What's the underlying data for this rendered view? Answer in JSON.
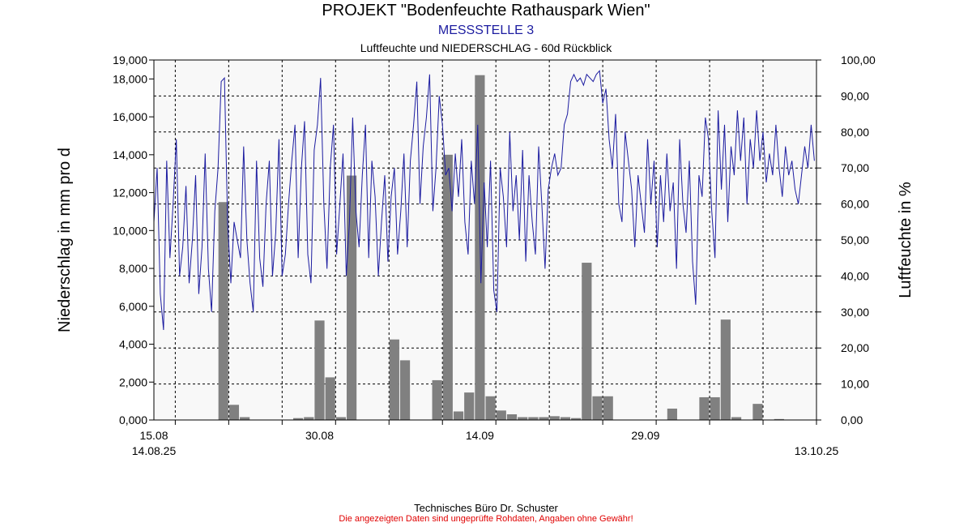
{
  "header": {
    "title": "PROJEKT \"Bodenfeuchte Rathauspark Wien\"",
    "subtitle": "MESSSTELLE 3",
    "subtitle2": "Luftfeuchte und NIEDERSCHLAG - 60d Rückblick"
  },
  "footer": {
    "company": "Technisches Büro Dr. Schuster",
    "disclaimer": "Die angezeigten Daten sind ungeprüfte Rohdaten, Angaben ohne Gewähr!"
  },
  "colors": {
    "plot_background": "#f8f8f8",
    "bars": "#808080",
    "humidity_line": "#1c1ca0",
    "grid": "#000000",
    "subtitle": "#1c1ca0",
    "disclaimer": "#e00000"
  },
  "chart_data": {
    "type": "bar+line",
    "ylabel_left": "Niederschlag in mm pro d",
    "ylabel_right": "Luftfeuchte in %",
    "ylim_left": [
      0,
      19
    ],
    "ylim_right": [
      0,
      100
    ],
    "yticks_left": [
      "0,000",
      "2,000",
      "4,000",
      "6,000",
      "8,000",
      "10,000",
      "12,000",
      "14,000",
      "16,000",
      "18,000",
      "19,000"
    ],
    "yticks_right": [
      "0,00",
      "10,00",
      "20,00",
      "30,00",
      "40,00",
      "50,00",
      "60,00",
      "70,00",
      "80,00",
      "90,00",
      "100,00"
    ],
    "x_days_total": 62,
    "x_start": "2025-08-14",
    "xticks": [
      {
        "label": "15.08",
        "day": 0
      },
      {
        "label": "30.08",
        "day": 15.5
      },
      {
        "label": "14.09",
        "day": 30.5
      },
      {
        "label": "29.09",
        "day": 46
      }
    ],
    "x_start_label": "14.08.25",
    "x_end_label": "13.10.25",
    "grid": true,
    "precipitation_series": {
      "name": "NIEDERSCHLAG",
      "days": [
        6,
        7,
        8,
        13,
        14,
        15,
        16,
        17,
        18,
        19,
        22,
        23,
        26,
        27,
        28,
        29,
        30,
        31,
        32,
        33,
        34,
        35,
        36,
        37,
        38,
        39,
        40,
        41,
        42,
        43,
        48,
        51,
        52,
        53,
        54,
        56,
        58
      ],
      "values": [
        11.5,
        0.8,
        0.15,
        0.1,
        0.15,
        5.25,
        2.25,
        0.15,
        12.9,
        0.0,
        4.25,
        3.15,
        2.1,
        14.0,
        0.45,
        1.45,
        18.2,
        1.25,
        0.5,
        0.3,
        0.15,
        0.15,
        0.15,
        0.2,
        0.15,
        0.1,
        8.3,
        1.25,
        1.25,
        0.0,
        0.6,
        1.2,
        1.2,
        5.3,
        0.15,
        0.85,
        0.05
      ]
    },
    "humidity_series": {
      "name": "Luftfeuchte",
      "days": [
        0,
        0.3,
        0.6,
        0.9,
        1.2,
        1.5,
        1.8,
        2.1,
        2.4,
        2.7,
        3.0,
        3.3,
        3.6,
        3.9,
        4.2,
        4.5,
        4.8,
        5.1,
        5.4,
        5.7,
        6.0,
        6.3,
        6.6,
        6.9,
        7.2,
        7.5,
        7.8,
        8.1,
        8.4,
        8.7,
        9.0,
        9.3,
        9.6,
        9.9,
        10.2,
        10.5,
        10.8,
        11.1,
        11.4,
        11.7,
        12.0,
        12.3,
        12.6,
        12.9,
        13.2,
        13.5,
        13.8,
        14.1,
        14.4,
        14.7,
        15.0,
        15.3,
        15.6,
        15.9,
        16.2,
        16.5,
        16.8,
        17.1,
        17.4,
        17.7,
        18.0,
        18.3,
        18.6,
        18.9,
        19.2,
        19.5,
        19.8,
        20.1,
        20.4,
        20.7,
        21.0,
        21.3,
        21.6,
        21.9,
        22.2,
        22.5,
        22.8,
        23.1,
        23.4,
        23.7,
        24.0,
        24.3,
        24.6,
        24.9,
        25.2,
        25.5,
        25.8,
        26.1,
        26.4,
        26.7,
        27.0,
        27.3,
        27.6,
        27.9,
        28.2,
        28.5,
        28.8,
        29.1,
        29.4,
        29.7,
        30.0,
        30.3,
        30.6,
        30.9,
        31.2,
        31.5,
        31.8,
        32.1,
        32.4,
        32.7,
        33.0,
        33.3,
        33.6,
        33.9,
        34.2,
        34.5,
        34.8,
        35.1,
        35.4,
        35.7,
        36.0,
        36.3,
        36.6,
        36.9,
        37.2,
        37.5,
        37.8,
        38.1,
        38.4,
        38.7,
        39.0,
        39.3,
        39.6,
        39.9,
        40.2,
        40.5,
        40.8,
        41.1,
        41.4,
        41.7,
        42.0,
        42.3,
        42.6,
        42.9,
        43.2,
        43.5,
        43.8,
        44.1,
        44.4,
        44.7,
        45.0,
        45.3,
        45.6,
        45.9,
        46.2,
        46.5,
        46.8,
        47.1,
        47.4,
        47.7,
        48.0,
        48.3,
        48.6,
        48.9,
        49.2,
        49.5,
        49.8,
        50.1,
        50.4,
        50.7,
        51.0,
        51.3,
        51.6,
        51.9,
        52.2,
        52.5,
        52.8,
        53.1,
        53.4,
        53.7,
        54.0,
        54.3,
        54.6,
        54.9,
        55.2,
        55.5,
        55.8,
        56.1,
        56.4,
        56.7,
        57.0,
        57.3,
        57.6,
        57.9,
        58.2,
        58.5,
        58.8,
        59.1,
        59.4,
        59.7,
        60.0,
        60.3,
        60.6,
        60.9,
        61.2,
        61.5,
        61.8
      ],
      "values": [
        55,
        70,
        35,
        25,
        72,
        45,
        60,
        78,
        40,
        48,
        65,
        38,
        50,
        68,
        35,
        48,
        74,
        42,
        30,
        58,
        70,
        94,
        95,
        55,
        38,
        55,
        50,
        45,
        76,
        50,
        38,
        30,
        72,
        45,
        37,
        60,
        72,
        40,
        52,
        78,
        40,
        46,
        60,
        72,
        82,
        45,
        70,
        83,
        46,
        38,
        75,
        82,
        95,
        60,
        42,
        70,
        82,
        46,
        60,
        74,
        40,
        55,
        84,
        58,
        48,
        68,
        82,
        45,
        72,
        62,
        40,
        55,
        68,
        44,
        62,
        70,
        46,
        58,
        74,
        48,
        72,
        82,
        94,
        60,
        76,
        84,
        96,
        58,
        70,
        90,
        82,
        68,
        70,
        58,
        74,
        62,
        78,
        55,
        46,
        72,
        60,
        82,
        38,
        66,
        48,
        72,
        36,
        30,
        70,
        62,
        48,
        80,
        58,
        68,
        50,
        75,
        44,
        68,
        55,
        46,
        76,
        60,
        42,
        64,
        70,
        74,
        68,
        70,
        82,
        85,
        94,
        96,
        94,
        95,
        93,
        96,
        95,
        94,
        96,
        97,
        88,
        92,
        78,
        70,
        85,
        60,
        55,
        80,
        72,
        64,
        48,
        68,
        60,
        52,
        78,
        60,
        72,
        48,
        68,
        55,
        74,
        58,
        66,
        42,
        78,
        60,
        52,
        72,
        44,
        32,
        68,
        62,
        84,
        78,
        58,
        45,
        86,
        64,
        82,
        55,
        76,
        68,
        86,
        72,
        84,
        60,
        78,
        70,
        86,
        72,
        80,
        66,
        74,
        68,
        82,
        70,
        62,
        76,
        68,
        72,
        64,
        60,
        68,
        76,
        70,
        82,
        72
      ]
    }
  }
}
